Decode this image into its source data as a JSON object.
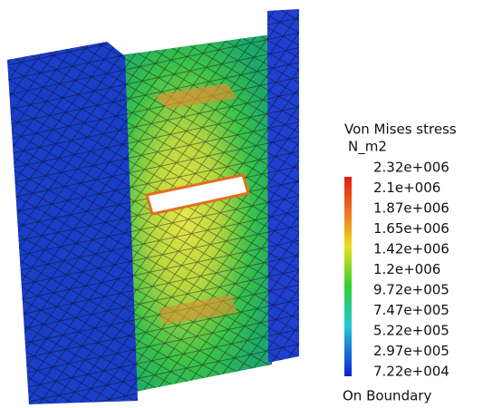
{
  "legend": {
    "title": "Von Mises stress",
    "unit": "N_m2",
    "labels": [
      "2.32e+006",
      "2.1e+006",
      "1.87e+006",
      "1.65e+006",
      "1.42e+006",
      "1.2e+006",
      "9.72e+005",
      "7.47e+005",
      "5.22e+005",
      "2.97e+005",
      "7.22e+004"
    ],
    "footer": "On Boundary"
  }
}
